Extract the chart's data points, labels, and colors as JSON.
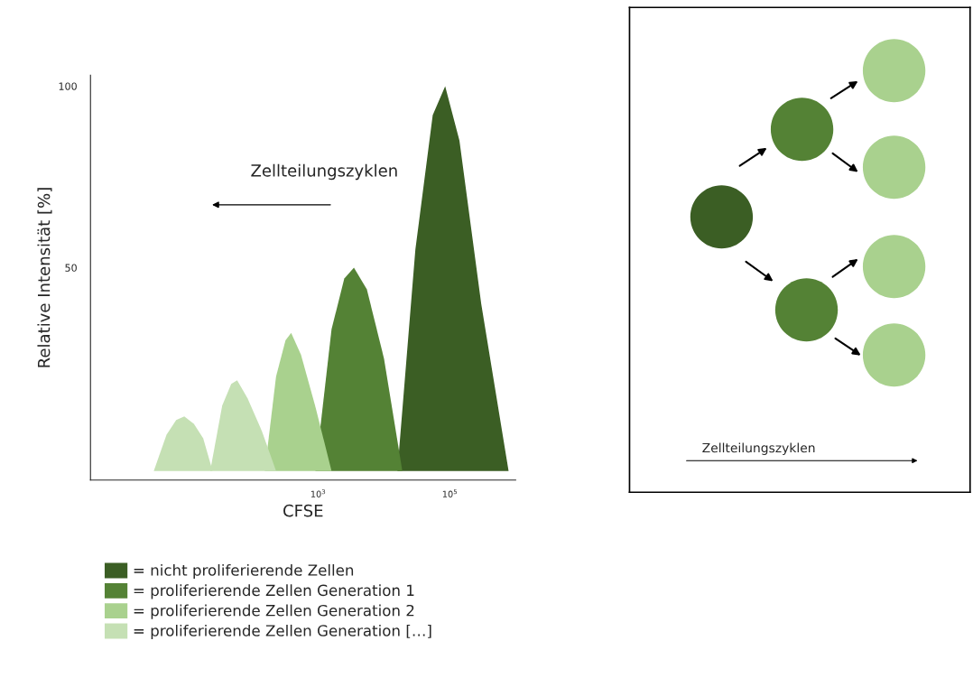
{
  "chart_data": [
    {
      "type": "area",
      "xlabel": "CFSE",
      "ylabel": "Relative Intensität [%]",
      "log": "x",
      "xlim": [
        0.35,
        1000000
      ],
      "ylim": [
        -8.5,
        103
      ],
      "xticks": [
        {
          "value": 1000,
          "label": "10$^{3}$"
        },
        {
          "value": 100000,
          "label": "10$^{5}$"
        }
      ],
      "yticks": [
        50,
        100
      ],
      "grid": false,
      "legend": "bottom",
      "annotations": [
        "Zellteilungszyklen"
      ],
      "series": [
        {
          "name": "= nicht proliferierende Zellen",
          "color": "#3b5e24",
          "x": [
            16000,
            30000,
            55000,
            85000,
            140000,
            300000,
            780000
          ],
          "values": [
            -6,
            55,
            92,
            100,
            85,
            40,
            -6
          ]
        },
        {
          "name": "= proliferierende Zellen Generation 1",
          "color": "#548235",
          "x": [
            910,
            1600,
            2500,
            3500,
            5500,
            10000,
            19000
          ],
          "values": [
            -6,
            33,
            47,
            50,
            44,
            25,
            -6
          ]
        },
        {
          "name": "= proliferierende Zellen Generation 2",
          "color": "#a9d18e",
          "x": [
            155,
            230,
            320,
            390,
            550,
            900,
            1600
          ],
          "values": [
            -6,
            20,
            30,
            32,
            26,
            12,
            -6
          ]
        },
        {
          "color": "#c5e0b4",
          "x": [
            23,
            35,
            48,
            59,
            85,
            140,
            230
          ],
          "values": [
            -6,
            12,
            18,
            19,
            14,
            5,
            -6
          ]
        },
        {
          "name": "= proliferierende Zellen Generation […]",
          "color": "#c5e0b4",
          "x": [
            3.2,
            5,
            7,
            9.3,
            13,
            18,
            25
          ],
          "values": [
            -6,
            4,
            8,
            9,
            7,
            3,
            -6
          ]
        }
      ]
    },
    {
      "type": "other",
      "annotations": [
        "Zellteilungszyklen"
      ]
    }
  ]
}
